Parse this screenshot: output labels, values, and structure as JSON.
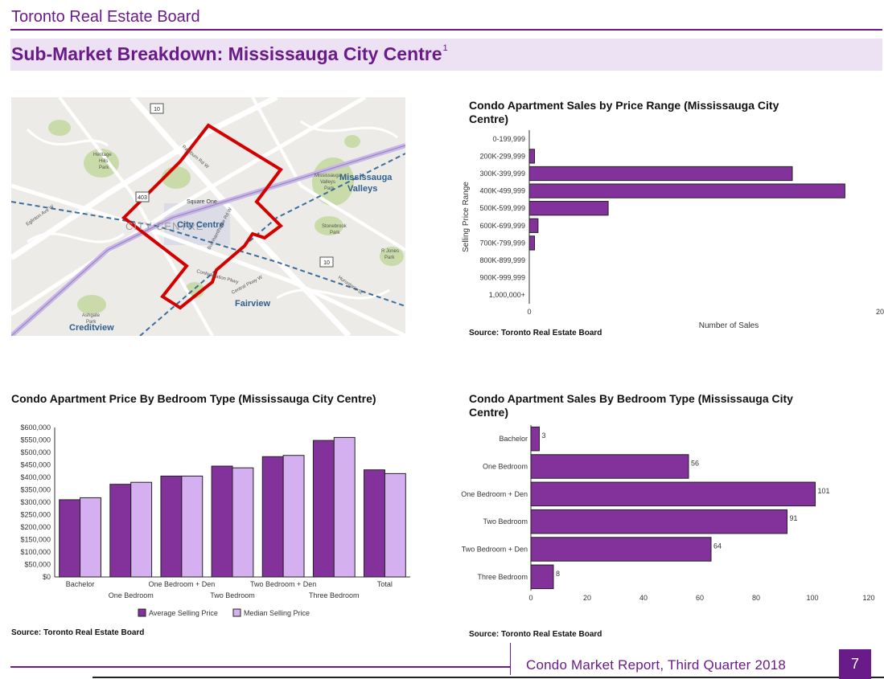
{
  "header": {
    "org_name": "Toronto Real Estate Board",
    "page_title": "Sub-Market Breakdown: Mississauga City Centre",
    "footnote_marker": "1"
  },
  "map": {
    "labels": {
      "city_centre_caps": "CITY CENTRE",
      "city_centre": "City Centre",
      "mississauga_valleys": "Mississauga",
      "valleys": "Valleys",
      "fairview": "Fairview",
      "creditview": "Creditview",
      "square_one": "Square One",
      "heritage_hills": "Heritage",
      "heritage_hills_2": "Hills",
      "heritage_hills_3": "Park",
      "stonebrook": "Stonebrook",
      "stonebrook_2": "Park",
      "ashgate": "Ashgate",
      "ashgate_2": "Park",
      "rjones": "R Jones",
      "rjones_2": "Park",
      "mv_park": "Mississauga",
      "mv_park_2": "Valleys",
      "mv_park_3": "Park",
      "hwy10": "10",
      "hwy403": "403",
      "hwy10b": "10",
      "hurontario": "Hurontario St",
      "burnhamthorpe": "Burnhamthorpe Rd W",
      "central_pkwy": "Central Pkwy W",
      "eglinton": "Eglinton Ave W",
      "rathburn": "Rathburn Rd W",
      "confed": "Confederation Pkwy"
    },
    "colors": {
      "boundary": "#d40000",
      "transit": "#3b6e9e",
      "park": "#c9dba8",
      "land": "#ecebe7",
      "road": "#ffffff"
    }
  },
  "chart_price_range": {
    "title": "Condo Apartment Sales by Price Range (Mississauga City Centre)",
    "source": "Source: Toronto Real Estate Board"
  },
  "chart_bedroom_price": {
    "title": "Condo Apartment Price By Bedroom Type (Mississauga City Centre)",
    "source": "Source: Toronto Real Estate Board"
  },
  "chart_bedroom_sales": {
    "title": "Condo Apartment Sales By Bedroom Type (Mississauga City Centre)",
    "source": "Source: Toronto Real Estate Board"
  },
  "footer": {
    "report": "Condo Market Report, Third Quarter 2018",
    "page_number": "7"
  },
  "chart_data": [
    {
      "id": "price_range",
      "type": "bar",
      "orientation": "horizontal",
      "title": "Condo Apartment Sales by Price Range (Mississauga City Centre)",
      "categories": [
        "0-199,999",
        "200K-299,999",
        "300K-399,999",
        "400K-499,999",
        "500K-599,999",
        "600K-699,999",
        "700K-799,999",
        "800K-899,999",
        "900K-999,999",
        "1,000,000+"
      ],
      "values": [
        0,
        0.3,
        15,
        18,
        4.5,
        0.5,
        0.3,
        0,
        0,
        0
      ],
      "xlabel": "Number of Sales",
      "ylabel": "Selling Price Range",
      "xlim": [
        0,
        20
      ],
      "xticks": [
        "0",
        "20"
      ],
      "color": "#84329b",
      "grid": false
    },
    {
      "id": "bedroom_price",
      "type": "bar",
      "title": "Condo Apartment Price By Bedroom Type (Mississauga City Centre)",
      "categories": [
        "Bachelor",
        "One Bedroom",
        "One Bedroom + Den",
        "Two Bedroom",
        "Two Bedroom + Den",
        "Three Bedroom",
        "Total"
      ],
      "series": [
        {
          "name": "Average Selling Price",
          "values": [
            310000,
            372000,
            405000,
            445000,
            483000,
            548000,
            430000
          ],
          "color": "#84329b"
        },
        {
          "name": "Median Selling Price",
          "values": [
            318000,
            380000,
            405000,
            438000,
            488000,
            560000,
            415000
          ],
          "color": "#d5b0f1"
        }
      ],
      "ylim": [
        0,
        600000
      ],
      "yticks": [
        "$0",
        "$50,000",
        "$100,000",
        "$150,000",
        "$200,000",
        "$250,000",
        "$300,000",
        "$350,000",
        "$400,000",
        "$450,000",
        "$500,000",
        "$550,000",
        "$600,000"
      ],
      "legend": "bottom",
      "grid": false
    },
    {
      "id": "bedroom_sales",
      "type": "bar",
      "orientation": "horizontal",
      "title": "Condo Apartment Sales By Bedroom Type (Mississauga City Centre)",
      "categories": [
        "Bachelor",
        "One Bedroom",
        "One Bedroom + Den",
        "Two Bedroom",
        "Two Bedroom + Den",
        "Three Bedroom"
      ],
      "values": [
        3,
        56,
        101,
        91,
        64,
        8
      ],
      "data_labels": [
        "3",
        "56",
        "101",
        "91",
        "64",
        "8"
      ],
      "xlim": [
        0,
        120
      ],
      "xticks": [
        "0",
        "20",
        "40",
        "60",
        "80",
        "100",
        "120"
      ],
      "color": "#84329b",
      "grid": false
    }
  ]
}
